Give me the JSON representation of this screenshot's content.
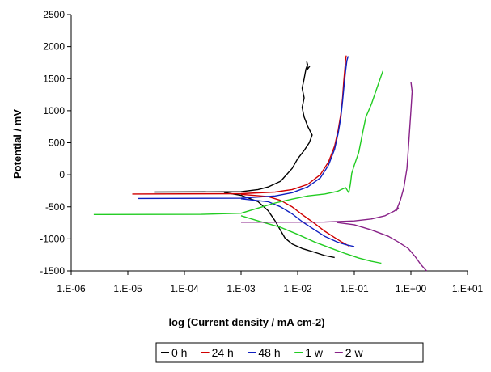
{
  "chart_data": {
    "type": "line",
    "title": "",
    "xlabel": "log (Current density / mA cm-2)",
    "ylabel": "Potential / mV",
    "x_scale": "log",
    "xlim": [
      "1.E-06",
      "1.E+01"
    ],
    "ylim": [
      -1500,
      2500
    ],
    "x_ticks": [
      "1.E-06",
      "1.E-05",
      "1.E-04",
      "1.E-03",
      "1.E-02",
      "1.E-01",
      "1.E+00",
      "1.E+01"
    ],
    "y_ticks": [
      "2500",
      "2000",
      "1500",
      "1000",
      "500",
      "0",
      "-500",
      "-1000",
      "-1500"
    ],
    "grid": false,
    "legend_position": "bottom",
    "series": [
      {
        "name": "0 h",
        "color": "#000000",
        "points": [
          [
            3e-05,
            -270
          ],
          [
            0.001,
            -265
          ],
          [
            0.002,
            -230
          ],
          [
            0.003,
            -190
          ],
          [
            0.005,
            -100
          ],
          [
            0.008,
            100
          ],
          [
            0.01,
            250
          ],
          [
            0.013,
            380
          ],
          [
            0.016,
            500
          ],
          [
            0.018,
            620
          ],
          [
            0.015,
            760
          ],
          [
            0.013,
            900
          ],
          [
            0.012,
            1050
          ],
          [
            0.013,
            1200
          ],
          [
            0.012,
            1350
          ],
          [
            0.013,
            1500
          ],
          [
            0.014,
            1650
          ],
          [
            0.015,
            1720
          ],
          [
            0.0145,
            1760
          ],
          [
            0.015,
            1650
          ],
          [
            0.0165,
            1700
          ]
        ],
        "points_low": [
          [
            0.0005,
            -275
          ],
          [
            0.001,
            -320
          ],
          [
            0.002,
            -420
          ],
          [
            0.003,
            -560
          ],
          [
            0.004,
            -720
          ],
          [
            0.005,
            -870
          ],
          [
            0.006,
            -990
          ],
          [
            0.008,
            -1080
          ],
          [
            0.012,
            -1150
          ],
          [
            0.02,
            -1210
          ],
          [
            0.03,
            -1260
          ],
          [
            0.045,
            -1290
          ]
        ]
      },
      {
        "name": "24 h",
        "color": "#d00000",
        "points": [
          [
            1.2e-05,
            -300
          ],
          [
            0.001,
            -295
          ],
          [
            0.004,
            -270
          ],
          [
            0.008,
            -230
          ],
          [
            0.015,
            -150
          ],
          [
            0.025,
            0
          ],
          [
            0.035,
            200
          ],
          [
            0.045,
            450
          ],
          [
            0.052,
            700
          ],
          [
            0.058,
            950
          ],
          [
            0.062,
            1200
          ],
          [
            0.065,
            1450
          ],
          [
            0.068,
            1650
          ],
          [
            0.07,
            1790
          ],
          [
            0.072,
            1860
          ]
        ],
        "points_low": [
          [
            0.001,
            -305
          ],
          [
            0.003,
            -340
          ],
          [
            0.005,
            -400
          ],
          [
            0.008,
            -500
          ],
          [
            0.012,
            -620
          ],
          [
            0.02,
            -760
          ],
          [
            0.03,
            -880
          ],
          [
            0.045,
            -980
          ],
          [
            0.06,
            -1050
          ],
          [
            0.08,
            -1110
          ]
        ]
      },
      {
        "name": "48 h",
        "color": "#1020c0",
        "points": [
          [
            1.5e-05,
            -370
          ],
          [
            0.001,
            -365
          ],
          [
            0.004,
            -330
          ],
          [
            0.008,
            -280
          ],
          [
            0.015,
            -190
          ],
          [
            0.025,
            -50
          ],
          [
            0.035,
            150
          ],
          [
            0.045,
            400
          ],
          [
            0.052,
            650
          ],
          [
            0.058,
            900
          ],
          [
            0.062,
            1150
          ],
          [
            0.066,
            1400
          ],
          [
            0.07,
            1620
          ],
          [
            0.074,
            1780
          ],
          [
            0.078,
            1850
          ]
        ],
        "points_low": [
          [
            0.001,
            -375
          ],
          [
            0.003,
            -420
          ],
          [
            0.005,
            -500
          ],
          [
            0.008,
            -610
          ],
          [
            0.012,
            -730
          ],
          [
            0.02,
            -860
          ],
          [
            0.03,
            -960
          ],
          [
            0.05,
            -1050
          ],
          [
            0.07,
            -1090
          ],
          [
            0.1,
            -1120
          ]
        ]
      },
      {
        "name": "1 w",
        "color": "#22cc22",
        "points": [
          [
            2.5e-06,
            -620
          ],
          [
            0.0002,
            -618
          ],
          [
            0.001,
            -600
          ],
          [
            0.002,
            -520
          ],
          [
            0.004,
            -440
          ],
          [
            0.008,
            -380
          ],
          [
            0.015,
            -330
          ],
          [
            0.03,
            -300
          ],
          [
            0.05,
            -260
          ],
          [
            0.07,
            -200
          ],
          [
            0.08,
            -280
          ],
          [
            0.085,
            -150
          ],
          [
            0.09,
            20
          ],
          [
            0.1,
            150
          ],
          [
            0.12,
            350
          ],
          [
            0.14,
            650
          ],
          [
            0.16,
            900
          ],
          [
            0.2,
            1100
          ],
          [
            0.25,
            1350
          ],
          [
            0.3,
            1550
          ],
          [
            0.32,
            1620
          ]
        ],
        "points_low": [
          [
            0.001,
            -640
          ],
          [
            0.002,
            -720
          ],
          [
            0.005,
            -820
          ],
          [
            0.01,
            -930
          ],
          [
            0.02,
            -1050
          ],
          [
            0.04,
            -1150
          ],
          [
            0.07,
            -1230
          ],
          [
            0.12,
            -1300
          ],
          [
            0.2,
            -1350
          ],
          [
            0.3,
            -1380
          ]
        ]
      },
      {
        "name": "2 w",
        "color": "#882288",
        "points": [
          [
            0.001,
            -740
          ],
          [
            0.03,
            -738
          ],
          [
            0.1,
            -720
          ],
          [
            0.2,
            -690
          ],
          [
            0.35,
            -640
          ],
          [
            0.5,
            -570
          ],
          [
            0.6,
            -520
          ],
          [
            0.55,
            -560
          ],
          [
            0.65,
            -400
          ],
          [
            0.75,
            -200
          ],
          [
            0.85,
            100
          ],
          [
            0.9,
            400
          ],
          [
            0.95,
            700
          ],
          [
            1.0,
            1000
          ],
          [
            1.05,
            1300
          ],
          [
            1.0,
            1450
          ]
        ],
        "points_low": [
          [
            0.05,
            -745
          ],
          [
            0.1,
            -780
          ],
          [
            0.2,
            -860
          ],
          [
            0.4,
            -960
          ],
          [
            0.6,
            -1050
          ],
          [
            0.9,
            -1150
          ],
          [
            1.2,
            -1280
          ],
          [
            1.5,
            -1400
          ],
          [
            1.8,
            -1480
          ],
          [
            1.9,
            -1500
          ]
        ]
      }
    ]
  }
}
